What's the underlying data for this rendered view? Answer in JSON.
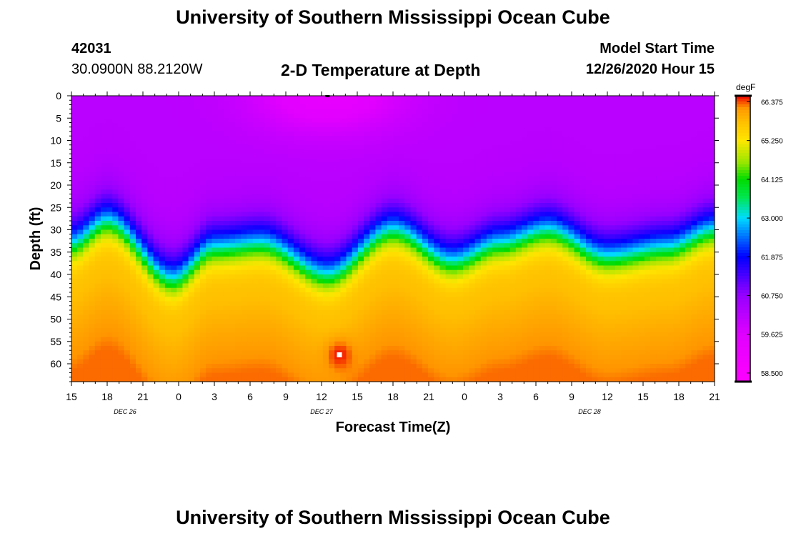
{
  "header": {
    "title_top": "University of Southern Mississippi Ocean Cube",
    "title_bottom": "University of Southern Mississippi Ocean Cube",
    "station_id": "42031",
    "coordinates": "30.0900N 88.2120W",
    "plot_title": "2-D Temperature at Depth",
    "model_label": "Model Start Time",
    "model_time": "12/26/2020 Hour 15"
  },
  "chart_data": {
    "type": "heatmap",
    "title": "2-D Temperature at Depth",
    "xlabel": "Forecast Time(Z)",
    "ylabel": "Depth (ft)",
    "x_hours_range": [
      0,
      54
    ],
    "x_tick_step_hours": 3,
    "x_tick_labels": [
      "15",
      "18",
      "21",
      "0",
      "3",
      "6",
      "9",
      "12",
      "15",
      "18",
      "21",
      "0",
      "3",
      "6",
      "9",
      "12",
      "15",
      "18",
      "21"
    ],
    "date_labels": [
      {
        "label": "DEC 26",
        "hour": 4.5
      },
      {
        "label": "DEC 27",
        "hour": 21
      },
      {
        "label": "DEC 28",
        "hour": 43.5
      }
    ],
    "y_range": [
      0,
      64
    ],
    "y_ticks": [
      0,
      5,
      10,
      15,
      20,
      25,
      30,
      35,
      40,
      45,
      50,
      55,
      60
    ],
    "colorbar": {
      "unit": "degF",
      "min": 58.25,
      "max": 66.55,
      "ticks": [
        "66.375",
        "65.250",
        "64.125",
        "63.000",
        "61.875",
        "60.750",
        "59.625",
        "58.500"
      ],
      "tick_values": [
        66.375,
        65.25,
        64.125,
        63.0,
        61.875,
        60.75,
        59.625,
        58.5
      ]
    },
    "thermocline_depth_ft": [
      {
        "hour": 0,
        "depth": 33
      },
      {
        "hour": 3,
        "depth": 28
      },
      {
        "hour": 8.5,
        "depth": 41
      },
      {
        "hour": 12,
        "depth": 34
      },
      {
        "hour": 16,
        "depth": 33
      },
      {
        "hour": 21.5,
        "depth": 40
      },
      {
        "hour": 27,
        "depth": 30
      },
      {
        "hour": 32,
        "depth": 37
      },
      {
        "hour": 36,
        "depth": 33
      },
      {
        "hour": 40,
        "depth": 30
      },
      {
        "hour": 45,
        "depth": 36
      },
      {
        "hour": 50,
        "depth": 34
      },
      {
        "hour": 54,
        "depth": 30
      }
    ],
    "annotations": [
      {
        "type": "warm-spot",
        "hour": 22.5,
        "depth": 58,
        "value": 66.5
      },
      {
        "type": "cool-spot",
        "hour": 21.5,
        "depth": 0,
        "value": 58.4
      }
    ]
  }
}
